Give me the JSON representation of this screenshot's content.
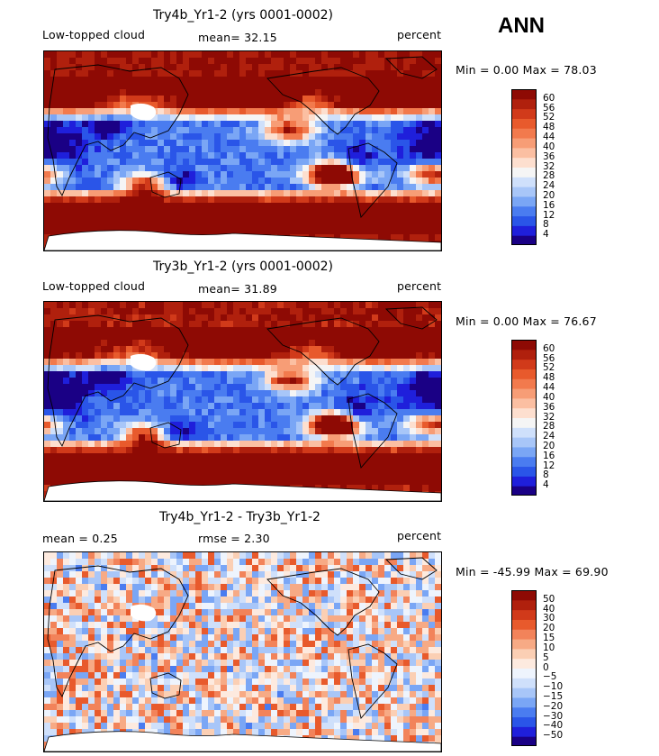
{
  "season": "ANN",
  "colors": {
    "abs_scale": [
      "#1a0085",
      "#1f1fdb",
      "#2a55e8",
      "#4a7cf0",
      "#7aa6f5",
      "#a8c6f8",
      "#cfe0fb",
      "#f5f5f5",
      "#fddfcf",
      "#fbbfa2",
      "#f79d76",
      "#f27a4d",
      "#e85a2c",
      "#d13a1a",
      "#b0200d",
      "#8e0a04"
    ],
    "diff_scale": [
      "#1a0085",
      "#1f1fdb",
      "#2a55e8",
      "#4a7cf0",
      "#7aa6f5",
      "#a8c6f8",
      "#cfe0fb",
      "#eef4fd",
      "#fdeadf",
      "#fbcfb4",
      "#f7aa85",
      "#f2835a",
      "#e85a2c",
      "#d13a1a",
      "#b0200d",
      "#8e0a04"
    ]
  },
  "panels": [
    {
      "title": "Try4b_Yr1-2 (yrs 0001-0002)",
      "left_label": "Low-topped cloud",
      "mid_label": "mean=   32.15",
      "units": "percent",
      "minmax": "Min =    0.00 Max =   78.03",
      "kind": "abs"
    },
    {
      "title": "Try3b_Yr1-2 (yrs 0001-0002)",
      "left_label": "Low-topped cloud",
      "mid_label": "mean=   31.89",
      "units": "percent",
      "minmax": "Min =    0.00 Max =   76.67",
      "kind": "abs"
    },
    {
      "title": "Try4b_Yr1-2 - Try3b_Yr1-2",
      "left_label": "mean =    0.25",
      "mid_label": "rmse =    2.30",
      "units": "percent",
      "minmax": "Min = -45.99 Max =  69.90",
      "kind": "diff"
    }
  ],
  "chart_data": [
    {
      "type": "heatmap",
      "title": "Try4b_Yr1-2 (yrs 0001-0002)",
      "variable": "Low-topped cloud",
      "units": "percent",
      "mean": 32.15,
      "min": 0.0,
      "max": 78.03,
      "colorbar_levels": [
        60,
        56,
        52,
        48,
        44,
        40,
        36,
        32,
        28,
        24,
        20,
        16,
        12,
        8,
        4
      ]
    },
    {
      "type": "heatmap",
      "title": "Try3b_Yr1-2 (yrs 0001-0002)",
      "variable": "Low-topped cloud",
      "units": "percent",
      "mean": 31.89,
      "min": 0.0,
      "max": 76.67,
      "colorbar_levels": [
        60,
        56,
        52,
        48,
        44,
        40,
        36,
        32,
        28,
        24,
        20,
        16,
        12,
        8,
        4
      ]
    },
    {
      "type": "heatmap",
      "title": "Try4b_Yr1-2 - Try3b_Yr1-2",
      "units": "percent",
      "mean": 0.25,
      "rmse": 2.3,
      "min": -45.99,
      "max": 69.9,
      "colorbar_levels": [
        50,
        40,
        30,
        20,
        15,
        10,
        5,
        0,
        -5,
        -10,
        -15,
        -20,
        -30,
        -40,
        -50
      ]
    }
  ]
}
